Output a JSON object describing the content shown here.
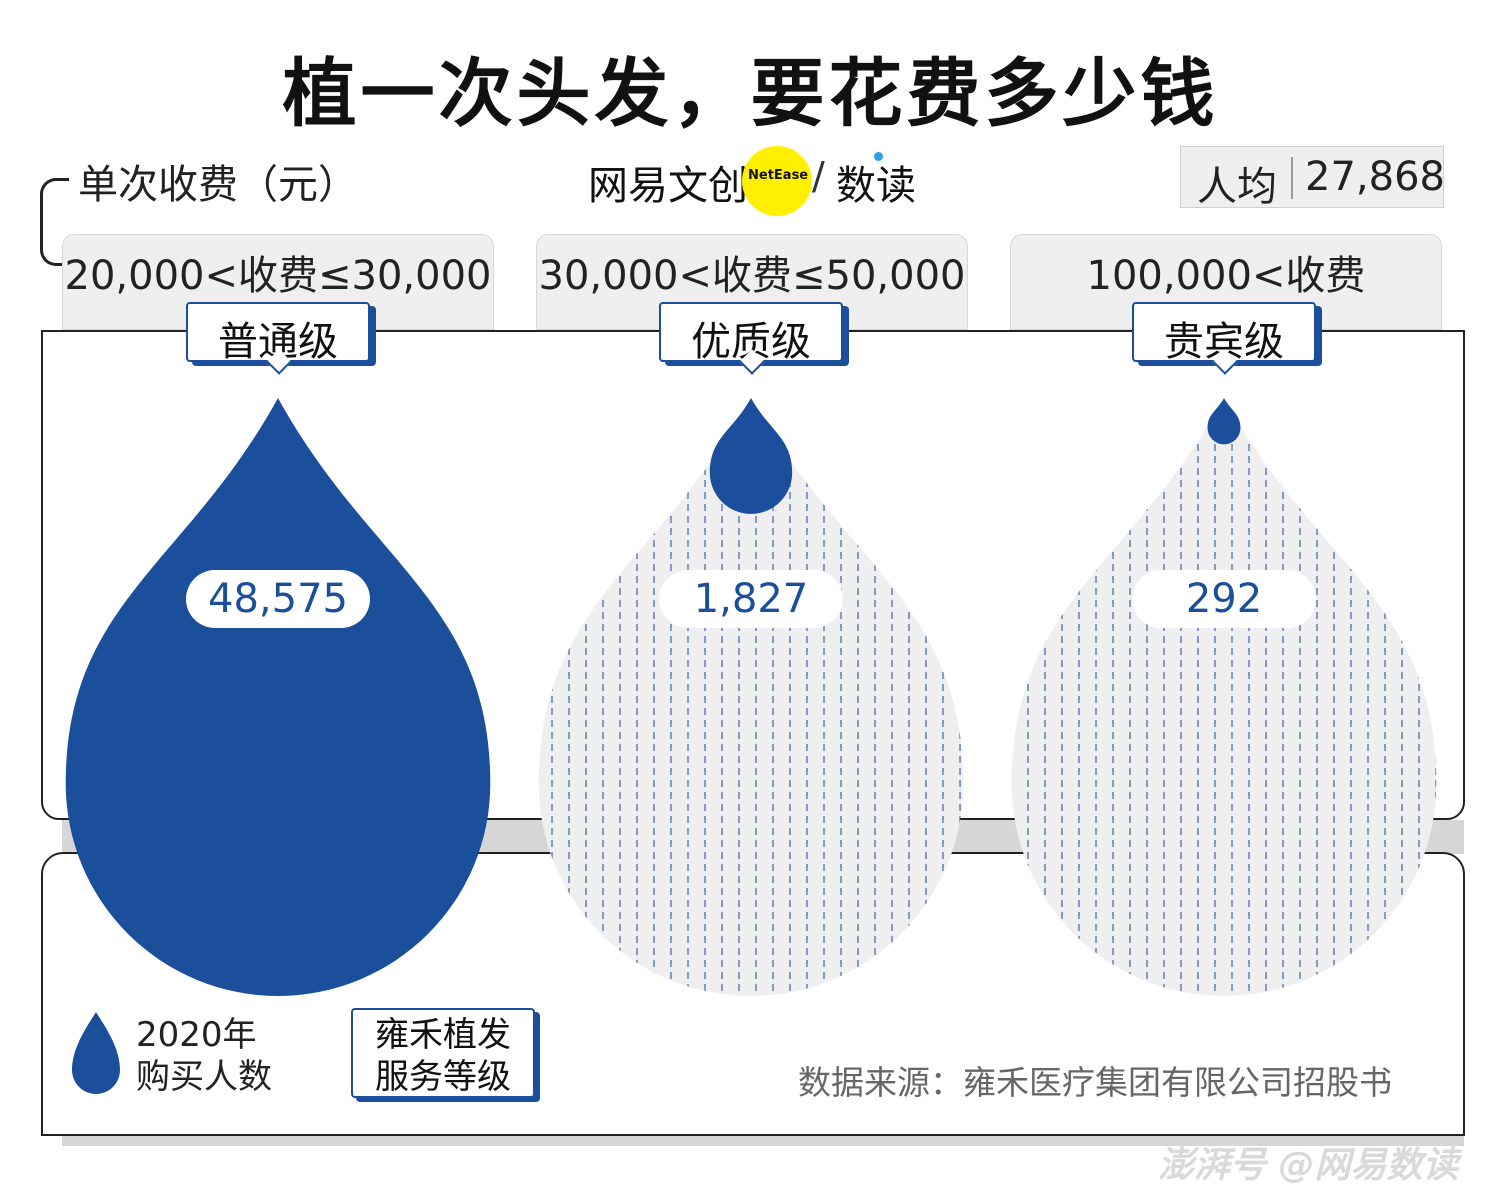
{
  "title": "植一次头发，要花费多少钱",
  "unit_label": "单次收费（元）",
  "logo": {
    "brand_cn": "网易文创",
    "brand_en": "NetEase",
    "slash": "/",
    "sub": "数读"
  },
  "average": {
    "label": "人均",
    "value": "27,868"
  },
  "colors": {
    "accent": "#1b4f9c",
    "pattern_bg": "#efefef",
    "logo_yellow": "#ffef00"
  },
  "chart_data": {
    "type": "proportional-area",
    "title": "植一次头发，要花费多少钱",
    "unit": "单次收费（元）",
    "categories": [
      {
        "tier": "普通级",
        "range": "20,000<收费≤30,000",
        "buyers": 48575,
        "buyers_label": "48,575"
      },
      {
        "tier": "优质级",
        "range": "30,000<收费≤50,000",
        "buyers": 1827,
        "buyers_label": "1,827"
      },
      {
        "tier": "贵宾级",
        "range": "100,000<收费",
        "buyers": 292,
        "buyers_label": "292"
      }
    ],
    "legend": {
      "drop": "2020年\n购买人数",
      "box": "雍禾植发\n服务等级"
    },
    "average_fee": 27868
  },
  "source": "数据来源：雍禾医疗集团有限公司招股书",
  "watermark": "澎湃号 @网易数读"
}
